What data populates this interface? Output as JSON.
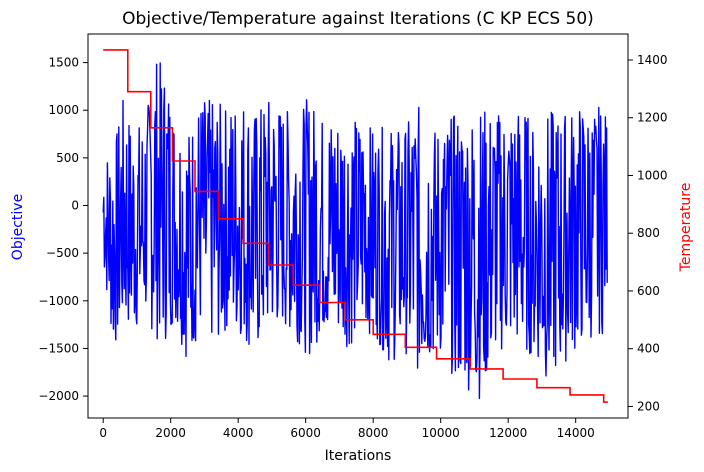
{
  "chart_data": {
    "type": "line",
    "title": "Objective/Temperature against Iterations (C KP ECS 50)",
    "xlabel": "Iterations",
    "ylabel_left": "Objective",
    "ylabel_right": "Temperature",
    "xlim": [
      -450,
      15550
    ],
    "ylim_left": [
      -2230,
      1800
    ],
    "ylim_right": [
      160,
      1490
    ],
    "x_ticks": [
      0,
      2000,
      4000,
      6000,
      8000,
      10000,
      12000,
      14000
    ],
    "y_ticks_left": [
      -2000,
      -1500,
      -1000,
      -500,
      0,
      500,
      1000,
      1500
    ],
    "y_ticks_right": [
      200,
      400,
      600,
      800,
      1000,
      1200,
      1400
    ],
    "grid": false,
    "legend": "none",
    "colors": {
      "objective": "#0000ff",
      "temperature": "#ff0000",
      "left_label": "#0000ff",
      "right_label": "#ff0000"
    },
    "series": [
      {
        "axis": "left",
        "color": "#0000ff",
        "x": [
          0,
          300,
          600,
          900,
          1300,
          1500,
          1900,
          2100,
          2500,
          2900,
          3300,
          3700,
          4100,
          4500,
          4900,
          5300,
          5700,
          6100,
          6500,
          6900,
          7300,
          7700,
          8100,
          8500,
          8900,
          9300,
          9700,
          10100,
          10500,
          10900,
          11200,
          11600,
          12000,
          12400,
          12800,
          13200,
          13700,
          14100,
          14500,
          14800,
          14950
        ],
        "y_max": [
          580,
          600,
          1150,
          800,
          1000,
          1620,
          1400,
          1000,
          800,
          1150,
          1100,
          1050,
          1200,
          1000,
          1150,
          1050,
          980,
          1150,
          950,
          1000,
          950,
          900,
          800,
          850,
          800,
          1080,
          820,
          880,
          1000,
          1000,
          1050,
          1000,
          1000,
          1100,
          800,
          1000,
          1000,
          1070,
          1000,
          1080,
          900
        ],
        "y_min": [
          -650,
          -1550,
          -1300,
          -1350,
          -1200,
          -1400,
          -1450,
          -1200,
          -1650,
          -1350,
          -1500,
          -1300,
          -1400,
          -1600,
          -1350,
          -1300,
          -1400,
          -1600,
          -1350,
          -1400,
          -1500,
          -1300,
          -1400,
          -1700,
          -1500,
          -1800,
          -1650,
          -1600,
          -1900,
          -1950,
          -2050,
          -1600,
          -1500,
          -1550,
          -1600,
          -1900,
          -1650,
          -1500,
          -1400,
          -1350,
          -850
        ]
      },
      {
        "axis": "right",
        "color": "#ff0000",
        "type": "step",
        "x": [
          0,
          730,
          1410,
          2050,
          2720,
          3420,
          4150,
          4900,
          5630,
          6420,
          7170,
          8000,
          8950,
          9880,
          10870,
          11850,
          12850,
          13830,
          14830,
          14950
        ],
        "y": [
          1435,
          1290,
          1165,
          1050,
          945,
          850,
          765,
          690,
          620,
          560,
          500,
          450,
          405,
          365,
          330,
          295,
          265,
          240,
          215,
          215
        ]
      }
    ]
  }
}
